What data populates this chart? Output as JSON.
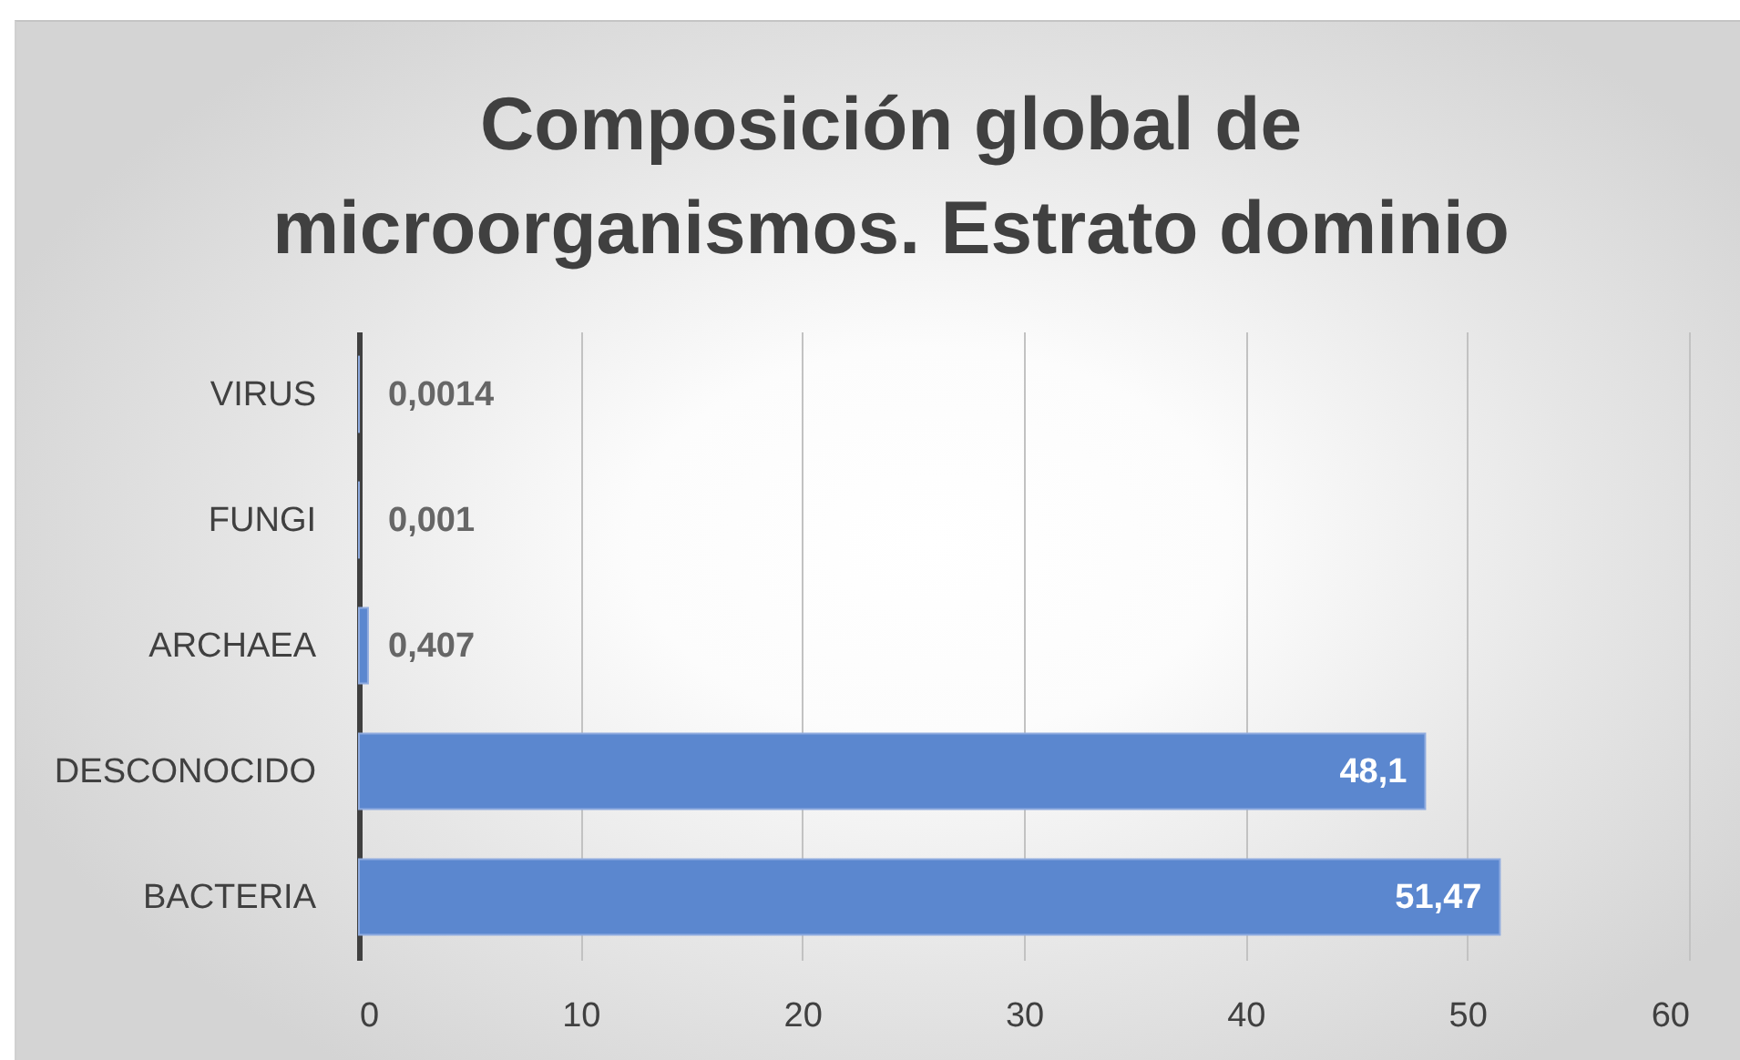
{
  "chart_data": {
    "type": "bar",
    "title": "Composición global de microorganismos. Estrato dominio",
    "orientation": "horizontal",
    "categories": [
      "VIRUS",
      "FUNGI",
      "ARCHAEA",
      "DESCONOCIDO",
      "BACTERIA"
    ],
    "values": [
      0.0014,
      0.001,
      0.407,
      48.1,
      51.47
    ],
    "value_labels": [
      "0,0014",
      "0,001",
      "0,407",
      "48,1",
      "51,47"
    ],
    "color": "#5b87cf",
    "xlim": [
      0,
      60
    ],
    "xticks": [
      0,
      10,
      20,
      30,
      40,
      50,
      60
    ],
    "grid": "x"
  }
}
